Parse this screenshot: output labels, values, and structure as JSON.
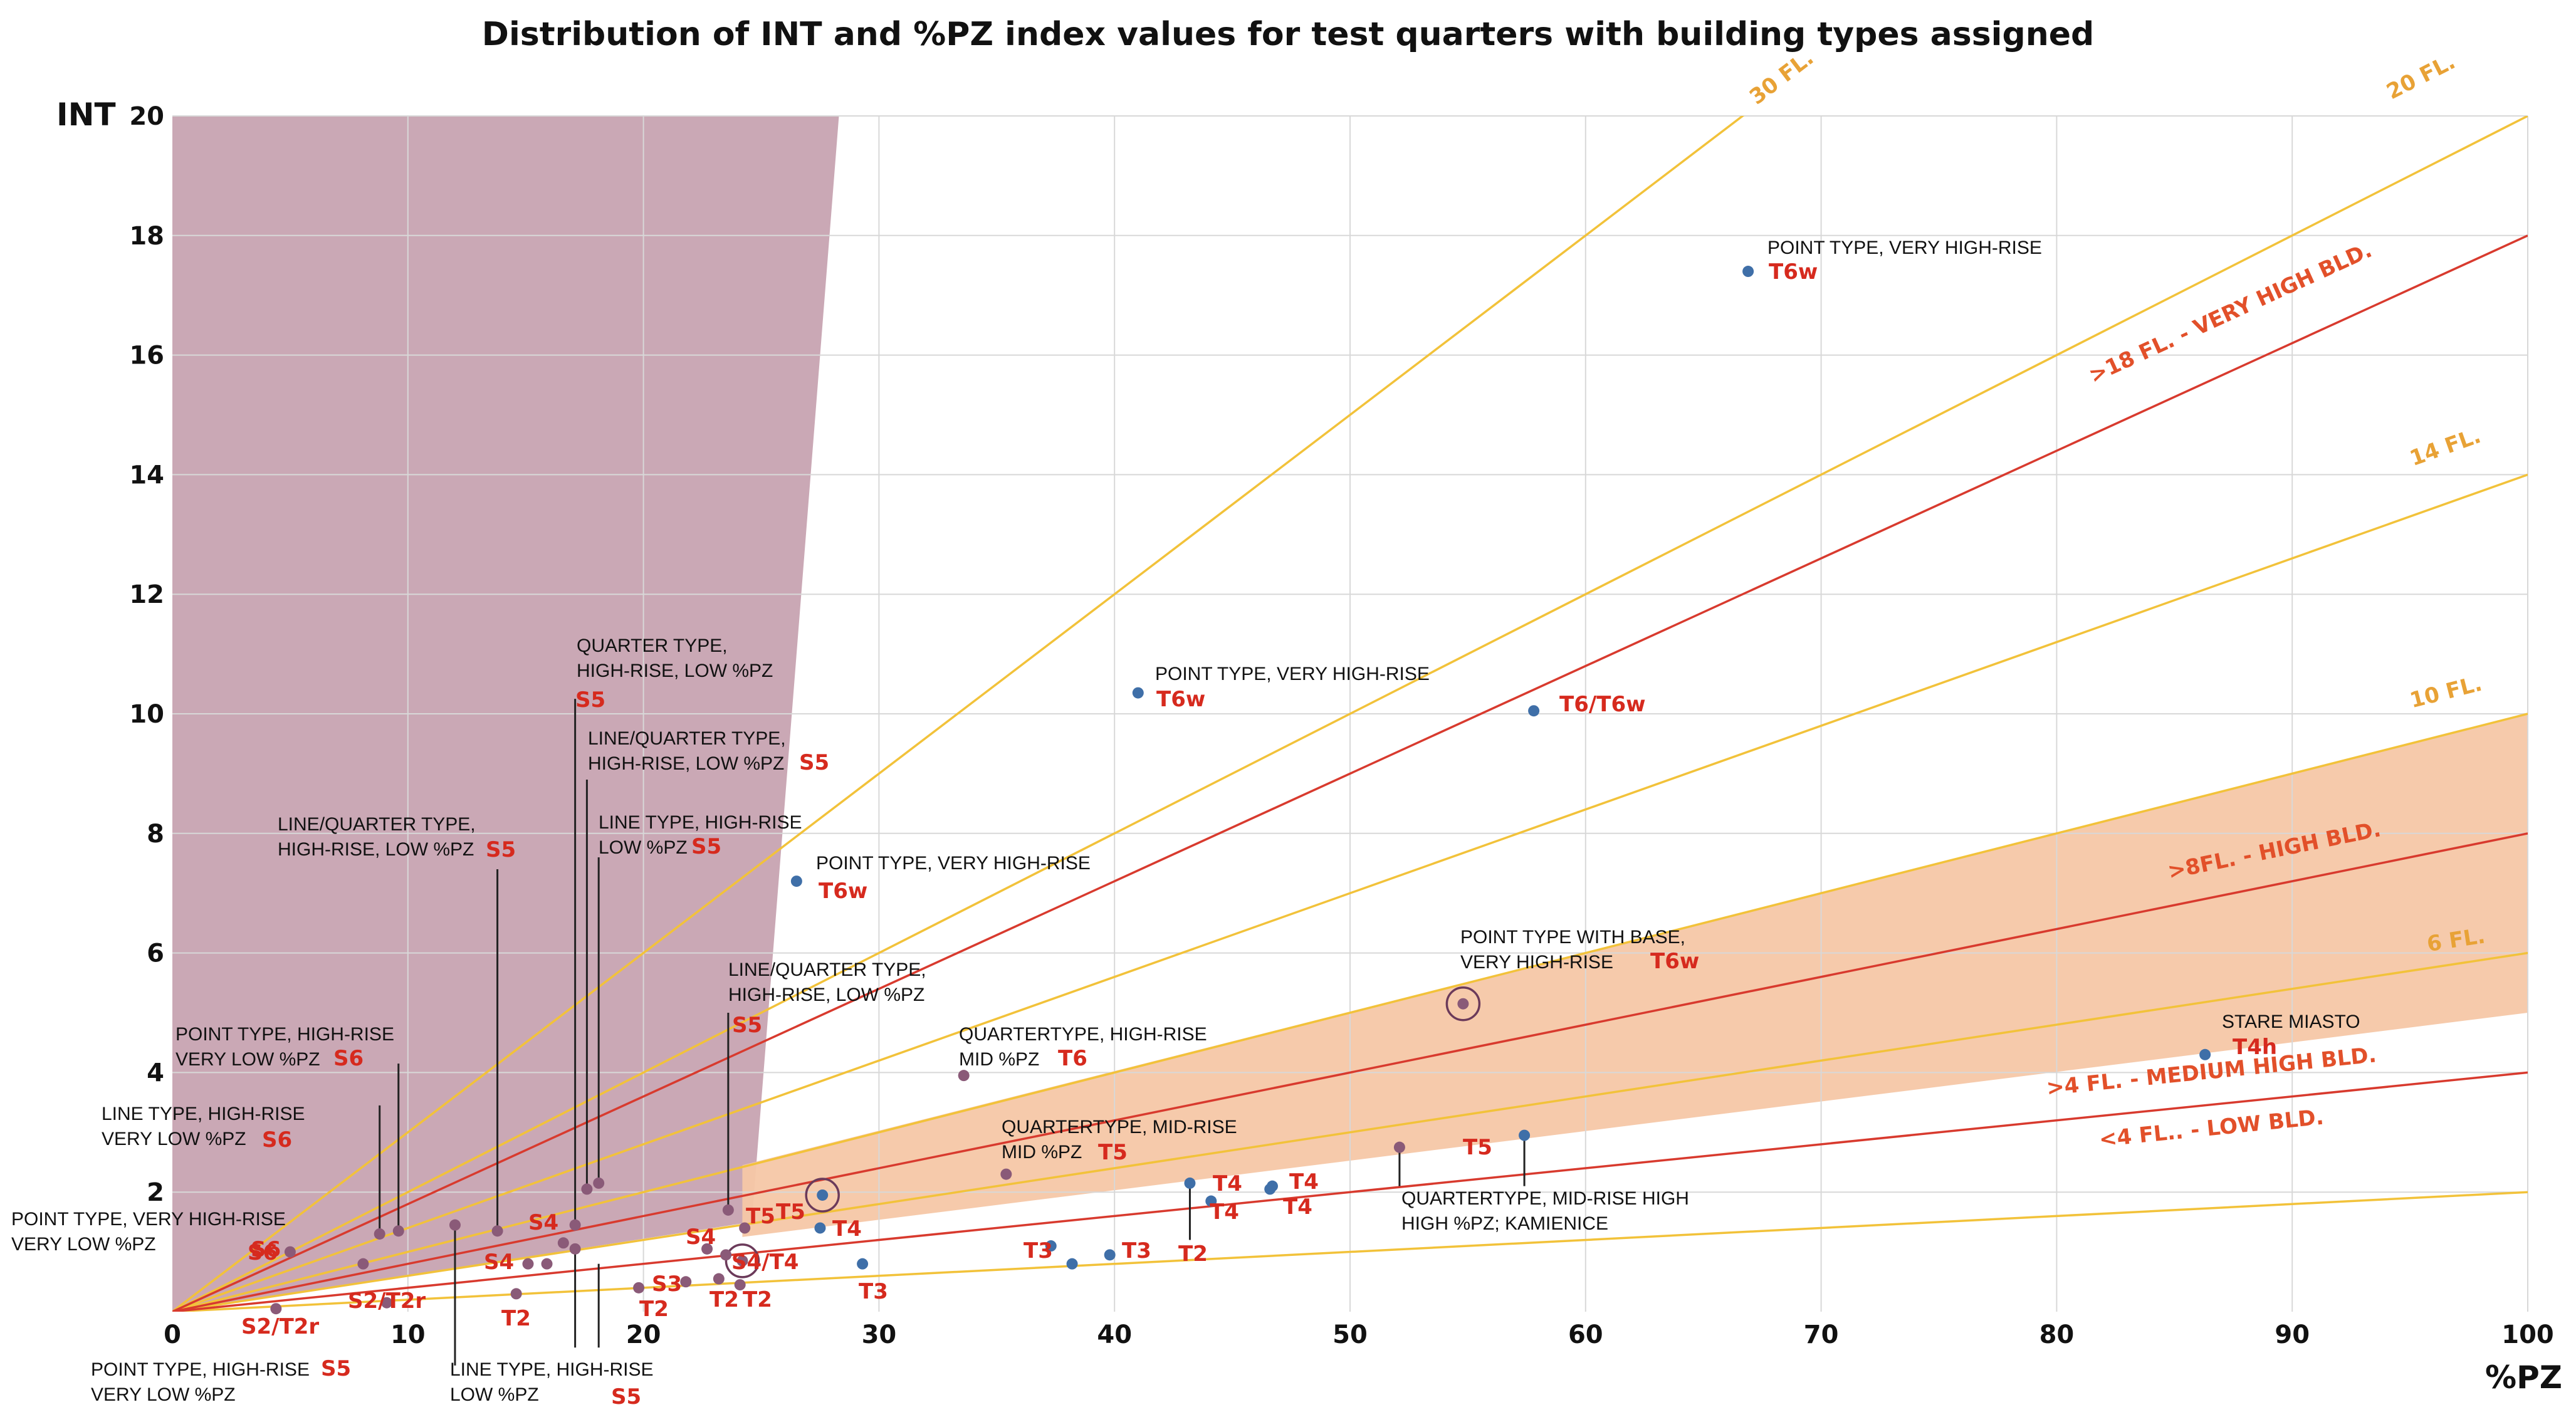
{
  "chart_data": {
    "type": "scatter",
    "title": "Distribution of INT and %PZ index values for test quarters with building types assigned",
    "xlabel": "%PZ",
    "ylabel": "INT",
    "xlim": [
      0,
      100
    ],
    "ylim": [
      0,
      20
    ],
    "x_ticks": [
      "0",
      "10",
      "20",
      "30",
      "40",
      "50",
      "60",
      "70",
      "80",
      "90",
      "100"
    ],
    "y_ticks": [
      "2",
      "4",
      "6",
      "8",
      "10",
      "12",
      "14",
      "16",
      "18",
      "20"
    ],
    "grid": true,
    "colors": {
      "point": "#3f6fa8",
      "point_in_shade": "#8a5a78",
      "floor_line": "#f2c23a",
      "category_line": "#d83a2e",
      "shaded_low_pz": "#c7a3b1",
      "shaded_high": "#f6c7a6",
      "tag_red": "#d62a1e"
    },
    "floor_lines": [
      {
        "label": "30 FL.",
        "slope": 0.3
      },
      {
        "label": "20 FL.",
        "slope": 0.2
      },
      {
        "label": "14 FL.",
        "slope": 0.14
      },
      {
        "label": "10 FL.",
        "slope": 0.1
      },
      {
        "label": "6 FL.",
        "slope": 0.06
      },
      {
        "label": "",
        "slope": 0.02
      }
    ],
    "category_lines": [
      {
        "label": ">18 FL. - VERY HIGH BLD.",
        "slope": 0.18
      },
      {
        "label": ">8FL. - HIGH BLD.",
        "slope": 0.08
      },
      {
        "label": ">4 FL. - MEDIUM HIGH BLD.",
        "slope": 0.04
      },
      {
        "label": "<4 FL.. - LOW BLD.",
        "slope": 0.04
      }
    ],
    "points": [
      [
        66.9,
        17.4
      ],
      [
        41,
        10.35
      ],
      [
        57.8,
        10.05
      ],
      [
        26.5,
        7.2
      ],
      [
        54.8,
        5.15
      ],
      [
        86.3,
        4.3
      ],
      [
        33.6,
        3.95
      ],
      [
        35.4,
        2.3
      ],
      [
        57.4,
        2.95
      ],
      [
        52.1,
        2.75
      ],
      [
        43.2,
        2.15
      ],
      [
        44.1,
        1.85
      ],
      [
        46.7,
        2.1
      ],
      [
        46.6,
        2.05
      ],
      [
        27.6,
        1.95
      ],
      [
        27.5,
        1.4
      ],
      [
        24.3,
        1.4
      ],
      [
        23.6,
        1.7
      ],
      [
        37.3,
        1.1
      ],
      [
        38.2,
        0.8
      ],
      [
        39.8,
        0.95
      ],
      [
        29.3,
        0.8
      ],
      [
        24.2,
        0.85
      ],
      [
        23.5,
        0.95
      ],
      [
        22.7,
        1.05
      ],
      [
        23.2,
        0.55
      ],
      [
        24.1,
        0.45
      ],
      [
        21.8,
        0.5
      ],
      [
        19.8,
        0.4
      ],
      [
        14.6,
        0.3
      ],
      [
        8.8,
        1.3
      ],
      [
        9.6,
        1.35
      ],
      [
        12,
        1.45
      ],
      [
        13.8,
        1.35
      ],
      [
        16.6,
        1.15
      ],
      [
        17.1,
        1.05
      ],
      [
        17.1,
        1.45
      ],
      [
        17.6,
        2.05
      ],
      [
        18.1,
        2.15
      ],
      [
        8.1,
        0.8
      ],
      [
        5,
        1
      ],
      [
        15.1,
        0.8
      ],
      [
        15.9,
        0.8
      ],
      [
        9.1,
        0.15
      ],
      [
        4.4,
        0.05
      ]
    ],
    "highlighted_points": [
      [
        27.6,
        1.95
      ],
      [
        54.8,
        5.15
      ],
      [
        24.2,
        0.85
      ]
    ],
    "annotations": [
      {
        "line1": "POINT TYPE, VERY HIGH-RISE",
        "line2": "",
        "tag": "T6w"
      },
      {
        "line1": "POINT TYPE, VERY HIGH-RISE",
        "line2": "",
        "tag": "T6w"
      },
      {
        "line1": "",
        "line2": "",
        "tag": "T6/T6w"
      },
      {
        "line1": "POINT TYPE, VERY HIGH-RISE",
        "line2": "",
        "tag": "T6w"
      },
      {
        "line1": "POINT TYPE WITH BASE,",
        "line2": "VERY HIGH-RISE",
        "tag": "T6w"
      },
      {
        "line1": "STARE MIASTO",
        "line2": "",
        "tag": "T4h"
      },
      {
        "line1": "QUARTERTYPE, HIGH-RISE",
        "line2": "MID %PZ",
        "tag": "T6"
      },
      {
        "line1": "QUARTERTYPE, MID-RISE",
        "line2": "MID %PZ",
        "tag": "T5"
      },
      {
        "line1": "QUARTERTYPE, MID-RISE HIGH",
        "line2": "HIGH %PZ; KAMIENICE",
        "tag": ""
      },
      {
        "line1": "QUARTER TYPE,",
        "line2": "HIGH-RISE, LOW %PZ",
        "tag": "S5"
      },
      {
        "line1": "LINE/QUARTER TYPE,",
        "line2": "HIGH-RISE, LOW %PZ",
        "tag": "S5"
      },
      {
        "line1": "LINE/QUARTER TYPE,",
        "line2": "HIGH-RISE, LOW %PZ",
        "tag": "S5"
      },
      {
        "line1": "LINE TYPE, HIGH-RISE",
        "line2": "LOW %PZ",
        "tag": "S5"
      },
      {
        "line1": "LINE/QUARTER TYPE,",
        "line2": "HIGH-RISE, LOW %PZ",
        "tag": "S5"
      },
      {
        "line1": "POINT TYPE, HIGH-RISE",
        "line2": "VERY LOW %PZ",
        "tag": "S6"
      },
      {
        "line1": "LINE TYPE, HIGH-RISE",
        "line2": "VERY LOW %PZ",
        "tag": "S6"
      },
      {
        "line1": "POINT TYPE, VERY HIGH-RISE",
        "line2": "VERY LOW %PZ",
        "tag": "S6"
      },
      {
        "line1": "POINT TYPE, HIGH-RISE",
        "line2": "VERY LOW %PZ",
        "tag": "S5"
      },
      {
        "line1": "LINE TYPE, HIGH-RISE",
        "line2": "LOW %PZ",
        "tag": "S5"
      }
    ],
    "point_tags": [
      "T5",
      "T5",
      "T4",
      "T4",
      "T4",
      "T4",
      "T4",
      "T5",
      "T3",
      "T3",
      "T3",
      "S4",
      "S4",
      "S4",
      "S3",
      "S4/T4",
      "T2",
      "T2",
      "T2",
      "T2",
      "T2",
      "S2/T2r",
      "S2/T2r",
      "S6"
    ]
  }
}
